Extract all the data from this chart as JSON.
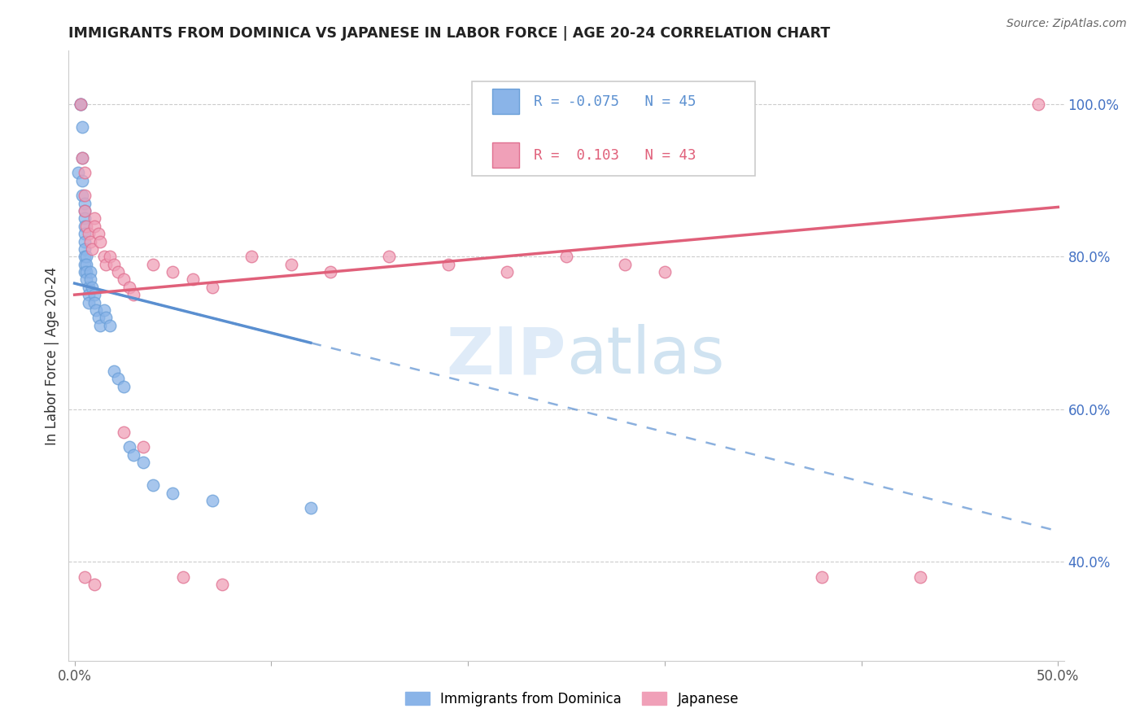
{
  "title": "IMMIGRANTS FROM DOMINICA VS JAPANESE IN LABOR FORCE | AGE 20-24 CORRELATION CHART",
  "source": "Source: ZipAtlas.com",
  "ylabel": "In Labor Force | Age 20-24",
  "xlim": [
    -0.003,
    0.503
  ],
  "ylim": [
    0.27,
    1.07
  ],
  "xtick_pos": [
    0.0,
    0.1,
    0.2,
    0.3,
    0.4,
    0.5
  ],
  "xtick_labels": [
    "0.0%",
    "",
    "",
    "",
    "",
    "50.0%"
  ],
  "yticks_right": [
    0.4,
    0.6,
    0.8,
    1.0
  ],
  "ytick_labels_right": [
    "40.0%",
    "60.0%",
    "80.0%",
    "100.0%"
  ],
  "blue_color": "#8ab4e8",
  "blue_edge_color": "#6a9fd8",
  "pink_color": "#f0a0b8",
  "pink_edge_color": "#e07090",
  "trendline_blue_color": "#5a8fd0",
  "trendline_pink_color": "#e0607a",
  "R_blue": -0.075,
  "N_blue": 45,
  "R_pink": 0.103,
  "N_pink": 43,
  "legend_label_blue": "Immigrants from Dominica",
  "legend_label_pink": "Japanese",
  "watermark": "ZIPatlas",
  "blue_x": [
    0.002,
    0.003,
    0.003,
    0.004,
    0.004,
    0.004,
    0.004,
    0.005,
    0.005,
    0.005,
    0.005,
    0.005,
    0.005,
    0.005,
    0.005,
    0.005,
    0.005,
    0.006,
    0.006,
    0.006,
    0.006,
    0.007,
    0.007,
    0.007,
    0.008,
    0.008,
    0.009,
    0.01,
    0.01,
    0.011,
    0.012,
    0.013,
    0.015,
    0.016,
    0.018,
    0.02,
    0.022,
    0.025,
    0.028,
    0.03,
    0.035,
    0.04,
    0.05,
    0.07,
    0.12
  ],
  "blue_y": [
    0.91,
    1.0,
    1.0,
    0.97,
    0.93,
    0.9,
    0.88,
    0.87,
    0.86,
    0.85,
    0.84,
    0.83,
    0.82,
    0.81,
    0.8,
    0.79,
    0.78,
    0.8,
    0.79,
    0.78,
    0.77,
    0.76,
    0.75,
    0.74,
    0.78,
    0.77,
    0.76,
    0.75,
    0.74,
    0.73,
    0.72,
    0.71,
    0.73,
    0.72,
    0.71,
    0.65,
    0.64,
    0.63,
    0.55,
    0.54,
    0.53,
    0.5,
    0.49,
    0.48,
    0.47
  ],
  "pink_x": [
    0.003,
    0.004,
    0.005,
    0.005,
    0.005,
    0.006,
    0.007,
    0.008,
    0.009,
    0.01,
    0.01,
    0.012,
    0.013,
    0.015,
    0.016,
    0.018,
    0.02,
    0.022,
    0.025,
    0.028,
    0.03,
    0.04,
    0.05,
    0.06,
    0.07,
    0.09,
    0.11,
    0.13,
    0.16,
    0.19,
    0.22,
    0.25,
    0.28,
    0.3,
    0.005,
    0.01,
    0.025,
    0.035,
    0.055,
    0.075,
    0.38,
    0.43,
    0.49
  ],
  "pink_y": [
    1.0,
    0.93,
    0.91,
    0.88,
    0.86,
    0.84,
    0.83,
    0.82,
    0.81,
    0.85,
    0.84,
    0.83,
    0.82,
    0.8,
    0.79,
    0.8,
    0.79,
    0.78,
    0.77,
    0.76,
    0.75,
    0.79,
    0.78,
    0.77,
    0.76,
    0.8,
    0.79,
    0.78,
    0.8,
    0.79,
    0.78,
    0.8,
    0.79,
    0.78,
    0.38,
    0.37,
    0.57,
    0.55,
    0.38,
    0.37,
    0.38,
    0.38,
    1.0
  ],
  "blue_trend_x": [
    0.0,
    0.5
  ],
  "blue_trend_y": [
    0.765,
    0.44
  ],
  "pink_trend_x": [
    0.0,
    0.5
  ],
  "pink_trend_y": [
    0.75,
    0.865
  ]
}
